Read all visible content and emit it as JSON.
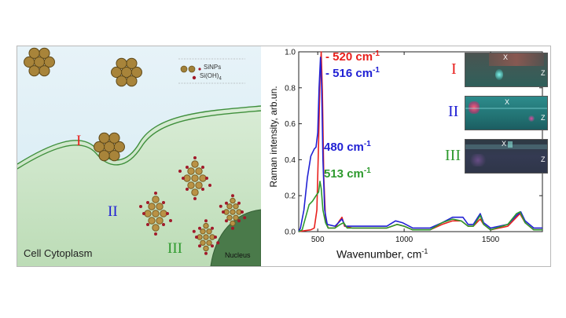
{
  "diagram": {
    "legend": {
      "sinps": "SiNPs",
      "sioh4_main": "Si(OH)",
      "sioh4_sub": "4"
    },
    "stage_labels": [
      "I",
      "II",
      "III"
    ],
    "cytoplasm_label": "Cell Cytoplasm",
    "nucleus_label": "Nucleus"
  },
  "chart_data": {
    "type": "line",
    "xlabel": "Wavenumber, cm",
    "xlabel_sup": "-1",
    "ylabel": "Raman intensity, arb.un.",
    "xlim": [
      390,
      1800
    ],
    "ylim": [
      0,
      1.0
    ],
    "x_ticks": [
      500,
      1000,
      1500
    ],
    "y_ticks": [
      0.0,
      0.2,
      0.4,
      0.6,
      0.8,
      1.0
    ],
    "y_tick_labels": [
      "0.0",
      "0.2",
      "0.4",
      "0.6",
      "0.8",
      "1.0"
    ],
    "annotations": [
      {
        "text": "520 cm",
        "sup": "-1",
        "color": "#e8201d"
      },
      {
        "text": "516 cm",
        "sup": "-1",
        "color": "#2121d4"
      },
      {
        "text": "480 cm",
        "sup": "-1",
        "color": "#2121d4"
      },
      {
        "text": "513 cm",
        "sup": "-1",
        "color": "#2e9a2e"
      }
    ],
    "series": [
      {
        "color": "#e8201d",
        "points": [
          [
            390,
            0
          ],
          [
            420,
            0.005
          ],
          [
            460,
            0.01
          ],
          [
            480,
            0.02
          ],
          [
            495,
            0.12
          ],
          [
            505,
            0.5
          ],
          [
            513,
            0.85
          ],
          [
            520,
            1.0
          ],
          [
            527,
            0.78
          ],
          [
            535,
            0.3
          ],
          [
            545,
            0.07
          ],
          [
            560,
            0.02
          ],
          [
            600,
            0.02
          ],
          [
            625,
            0.06
          ],
          [
            640,
            0.08
          ],
          [
            655,
            0.03
          ],
          [
            700,
            0.02
          ],
          [
            800,
            0.02
          ],
          [
            900,
            0.02
          ],
          [
            960,
            0.04
          ],
          [
            1000,
            0.03
          ],
          [
            1050,
            0.01
          ],
          [
            1150,
            0.01
          ],
          [
            1220,
            0.04
          ],
          [
            1280,
            0.06
          ],
          [
            1330,
            0.06
          ],
          [
            1370,
            0.03
          ],
          [
            1400,
            0.03
          ],
          [
            1440,
            0.07
          ],
          [
            1460,
            0.04
          ],
          [
            1500,
            0.01
          ],
          [
            1600,
            0.03
          ],
          [
            1650,
            0.08
          ],
          [
            1670,
            0.1
          ],
          [
            1700,
            0.05
          ],
          [
            1750,
            0.01
          ],
          [
            1800,
            0.01
          ]
        ]
      },
      {
        "color": "#2121d4",
        "points": [
          [
            390,
            0
          ],
          [
            400,
            0.02
          ],
          [
            420,
            0.12
          ],
          [
            440,
            0.3
          ],
          [
            460,
            0.42
          ],
          [
            480,
            0.46
          ],
          [
            490,
            0.47
          ],
          [
            500,
            0.55
          ],
          [
            508,
            0.8
          ],
          [
            516,
            0.97
          ],
          [
            523,
            0.8
          ],
          [
            530,
            0.4
          ],
          [
            540,
            0.12
          ],
          [
            555,
            0.04
          ],
          [
            600,
            0.03
          ],
          [
            620,
            0.05
          ],
          [
            640,
            0.07
          ],
          [
            660,
            0.03
          ],
          [
            700,
            0.03
          ],
          [
            800,
            0.03
          ],
          [
            900,
            0.03
          ],
          [
            950,
            0.06
          ],
          [
            990,
            0.05
          ],
          [
            1050,
            0.02
          ],
          [
            1150,
            0.02
          ],
          [
            1220,
            0.05
          ],
          [
            1280,
            0.08
          ],
          [
            1340,
            0.08
          ],
          [
            1370,
            0.04
          ],
          [
            1400,
            0.04
          ],
          [
            1440,
            0.1
          ],
          [
            1460,
            0.05
          ],
          [
            1500,
            0.02
          ],
          [
            1600,
            0.04
          ],
          [
            1650,
            0.09
          ],
          [
            1675,
            0.11
          ],
          [
            1700,
            0.06
          ],
          [
            1750,
            0.02
          ],
          [
            1800,
            0.02
          ]
        ]
      },
      {
        "color": "#2e9a2e",
        "points": [
          [
            390,
            0
          ],
          [
            410,
            0.01
          ],
          [
            430,
            0.08
          ],
          [
            450,
            0.15
          ],
          [
            470,
            0.17
          ],
          [
            490,
            0.2
          ],
          [
            505,
            0.22
          ],
          [
            513,
            0.28
          ],
          [
            520,
            0.24
          ],
          [
            530,
            0.12
          ],
          [
            545,
            0.05
          ],
          [
            560,
            0.02
          ],
          [
            600,
            0.02
          ],
          [
            630,
            0.04
          ],
          [
            650,
            0.05
          ],
          [
            670,
            0.02
          ],
          [
            700,
            0.02
          ],
          [
            800,
            0.02
          ],
          [
            900,
            0.02
          ],
          [
            960,
            0.04
          ],
          [
            1000,
            0.03
          ],
          [
            1050,
            0.01
          ],
          [
            1150,
            0.01
          ],
          [
            1220,
            0.05
          ],
          [
            1280,
            0.07
          ],
          [
            1330,
            0.06
          ],
          [
            1370,
            0.03
          ],
          [
            1400,
            0.03
          ],
          [
            1440,
            0.09
          ],
          [
            1460,
            0.04
          ],
          [
            1500,
            0.01
          ],
          [
            1600,
            0.04
          ],
          [
            1650,
            0.1
          ],
          [
            1670,
            0.11
          ],
          [
            1700,
            0.05
          ],
          [
            1750,
            0.01
          ],
          [
            1800,
            0.01
          ]
        ]
      }
    ]
  },
  "insets": [
    {
      "label": "I",
      "label_color": "#e8201d",
      "x_axis": "X",
      "z_axis": "Z"
    },
    {
      "label": "II",
      "label_color": "#2121d4",
      "x_axis": "X",
      "z_axis": "Z"
    },
    {
      "label": "III",
      "label_color": "#2e9a2e",
      "x_axis": "X",
      "z_axis": "Z"
    }
  ]
}
